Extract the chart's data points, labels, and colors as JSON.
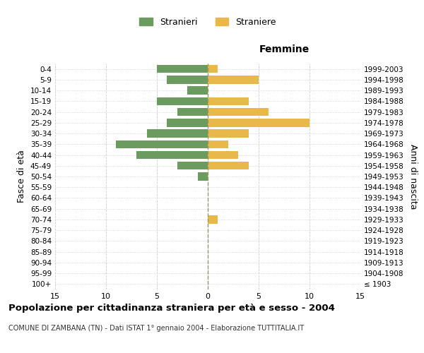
{
  "age_groups": [
    "100+",
    "95-99",
    "90-94",
    "85-89",
    "80-84",
    "75-79",
    "70-74",
    "65-69",
    "60-64",
    "55-59",
    "50-54",
    "45-49",
    "40-44",
    "35-39",
    "30-34",
    "25-29",
    "20-24",
    "15-19",
    "10-14",
    "5-9",
    "0-4"
  ],
  "birth_years": [
    "≤ 1903",
    "1904-1908",
    "1909-1913",
    "1914-1918",
    "1919-1923",
    "1924-1928",
    "1929-1933",
    "1934-1938",
    "1939-1943",
    "1944-1948",
    "1949-1953",
    "1954-1958",
    "1959-1963",
    "1964-1968",
    "1969-1973",
    "1974-1978",
    "1979-1983",
    "1984-1988",
    "1989-1993",
    "1994-1998",
    "1999-2003"
  ],
  "males": [
    0,
    0,
    0,
    0,
    0,
    0,
    0,
    0,
    0,
    0,
    1,
    3,
    7,
    9,
    6,
    4,
    3,
    5,
    2,
    4,
    5
  ],
  "females": [
    0,
    0,
    0,
    0,
    0,
    0,
    1,
    0,
    0,
    0,
    0,
    4,
    3,
    2,
    4,
    10,
    6,
    4,
    0,
    5,
    1
  ],
  "male_color": "#6b9b5e",
  "female_color": "#e8b84b",
  "background_color": "#ffffff",
  "grid_color": "#cccccc",
  "title": "Popolazione per cittadinanza straniera per età e sesso - 2004",
  "subtitle": "COMUNE DI ZAMBANA (TN) - Dati ISTAT 1° gennaio 2004 - Elaborazione TUTTITALIA.IT",
  "xlabel_right": "Femmine",
  "ylabel_left": "Fasce di età",
  "ylabel_right": "Anni di nascita",
  "legend_male": "Stranieri",
  "legend_female": "Straniere",
  "xlim": 15
}
